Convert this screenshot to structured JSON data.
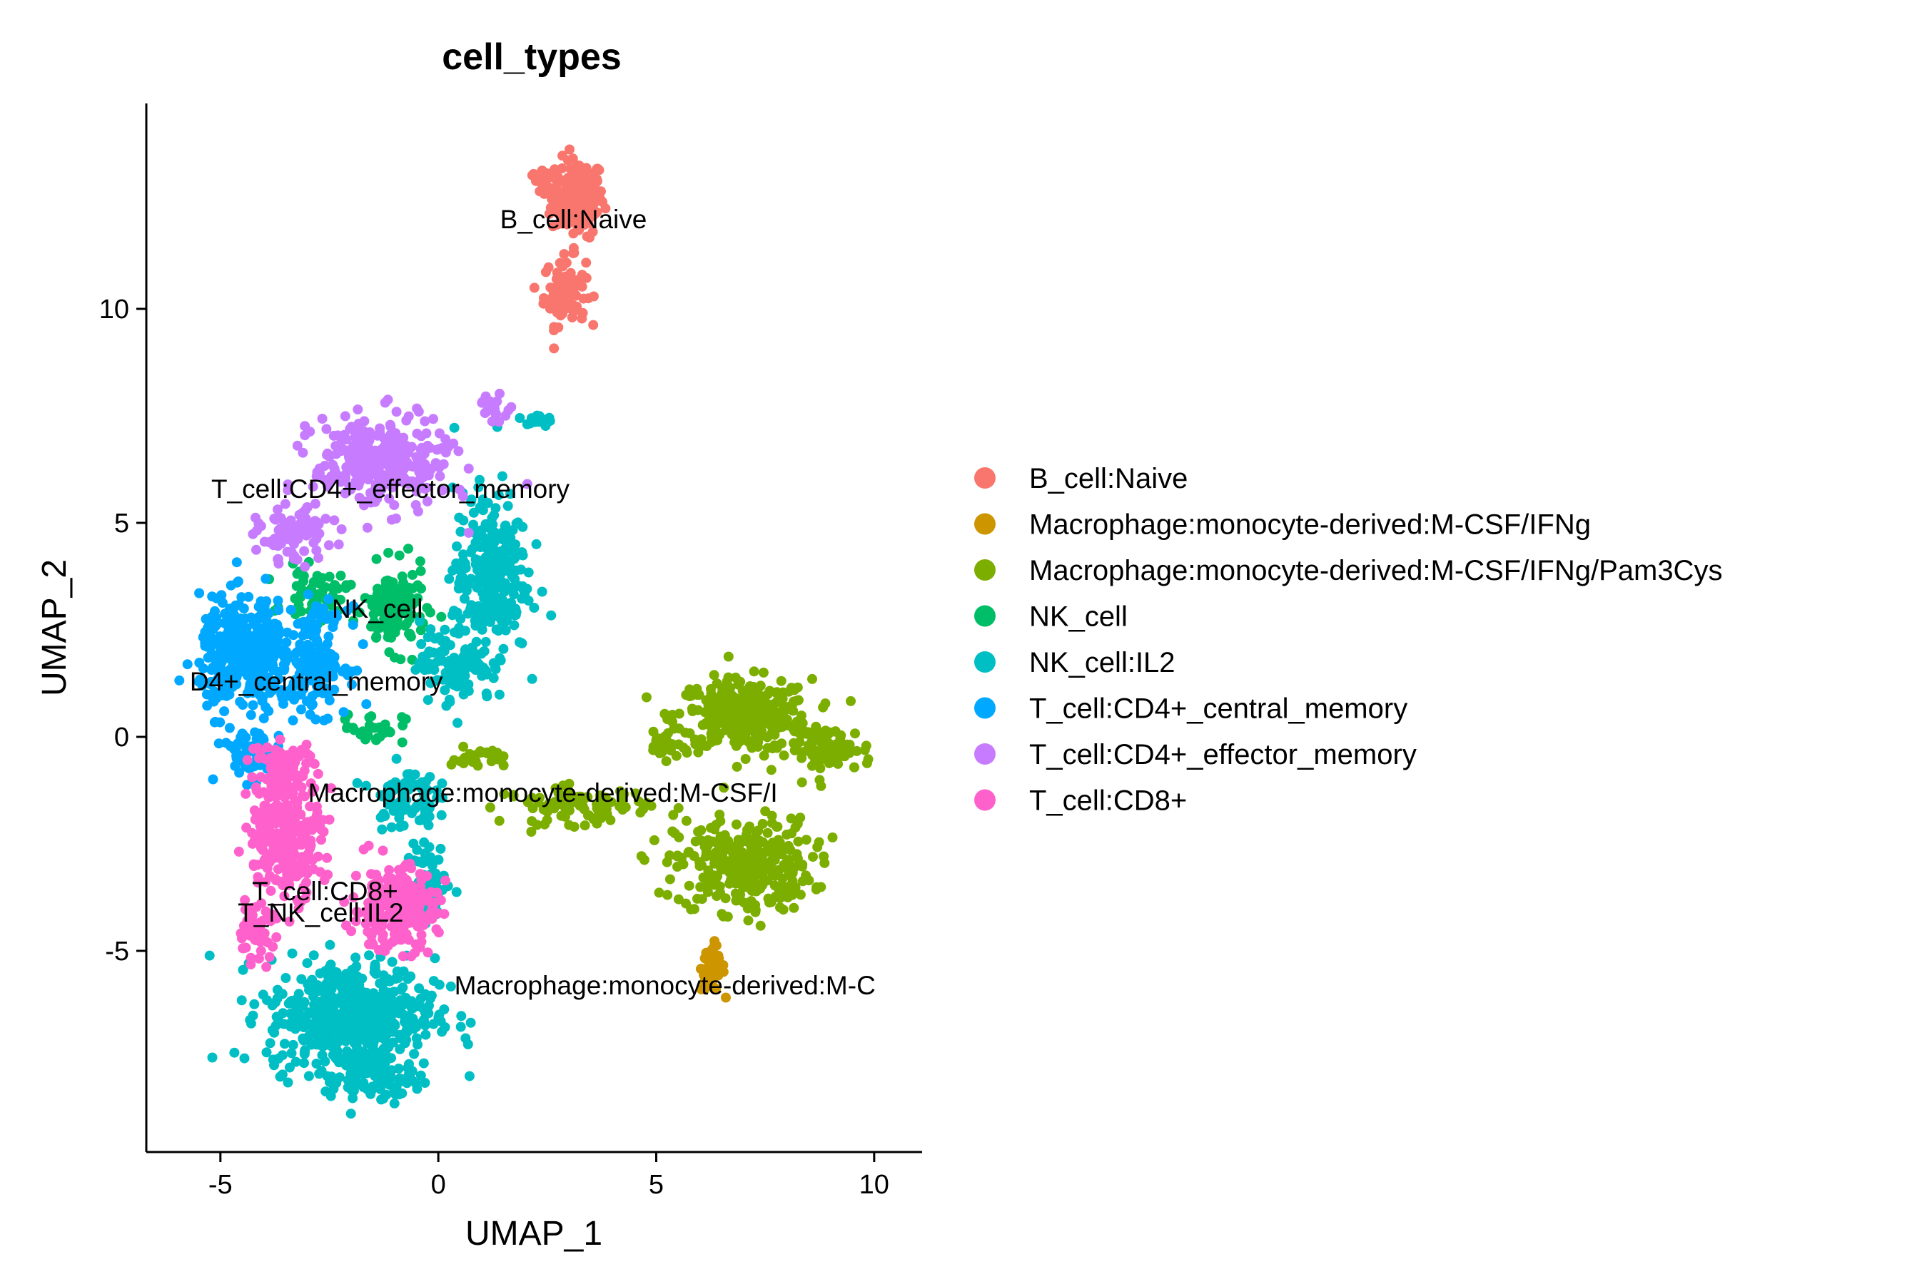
{
  "chart_data": {
    "type": "scatter",
    "title": "cell_types",
    "xlabel": "UMAP_1",
    "ylabel": "UMAP_2",
    "xlim": [
      -6.7,
      11.1
    ],
    "ylim": [
      -9.7,
      14.8
    ],
    "x_ticks": [
      -5,
      0,
      5,
      10
    ],
    "y_ticks": [
      -5,
      0,
      5,
      10
    ],
    "x_tick_labels": [
      "-5",
      "0",
      "5",
      "10"
    ],
    "y_tick_labels": [
      "-5",
      "0",
      "5",
      "10"
    ],
    "grid": false,
    "legend_position": "right",
    "series": [
      {
        "name": "B_cell:Naive",
        "color": "#F8766D",
        "clusters": [
          [
            3.2,
            12.6,
            0.5,
            0.75,
            180
          ],
          [
            2.9,
            10.4,
            0.4,
            0.65,
            90
          ],
          [
            2.5,
            13.0,
            0.3,
            0.2,
            30
          ]
        ]
      },
      {
        "name": "Macrophage:monocyte-derived:M-CSF/IFNg",
        "color": "#CD9600",
        "clusters": [
          [
            6.3,
            -5.4,
            0.22,
            0.45,
            60
          ]
        ]
      },
      {
        "name": "Macrophage:monocyte-derived:M-CSF/IFNg/Pam3Cys",
        "color": "#7CAE00",
        "clusters": [
          [
            7.0,
            0.5,
            1.3,
            0.7,
            320
          ],
          [
            7.0,
            -3.0,
            1.3,
            0.9,
            320
          ],
          [
            9.0,
            -0.3,
            0.8,
            0.45,
            80
          ],
          [
            3.2,
            -1.6,
            1.4,
            0.35,
            90
          ],
          [
            0.9,
            -0.5,
            0.5,
            0.2,
            30
          ],
          [
            5.2,
            -0.2,
            0.3,
            0.25,
            25
          ]
        ]
      },
      {
        "name": "NK_cell",
        "color": "#00BE67",
        "clusters": [
          [
            -1.0,
            3.0,
            0.6,
            0.8,
            140
          ],
          [
            -2.8,
            3.3,
            0.6,
            0.5,
            60
          ],
          [
            -1.5,
            0.2,
            0.6,
            0.3,
            30
          ]
        ]
      },
      {
        "name": "NK_cell:IL2",
        "color": "#00BFC4",
        "clusters": [
          [
            -2.0,
            -6.5,
            1.6,
            1.1,
            520
          ],
          [
            -1.5,
            -7.9,
            0.8,
            0.5,
            110
          ],
          [
            1.2,
            3.8,
            0.7,
            1.6,
            260
          ],
          [
            0.4,
            1.8,
            0.7,
            0.8,
            110
          ],
          [
            -0.2,
            -3.5,
            0.4,
            0.8,
            70
          ],
          [
            -0.8,
            -1.4,
            0.6,
            0.6,
            80
          ],
          [
            2.3,
            7.4,
            0.3,
            0.15,
            20
          ]
        ]
      },
      {
        "name": "T_cell:CD4+_central_memory",
        "color": "#00A9FF",
        "clusters": [
          [
            -4.4,
            1.9,
            0.9,
            1.1,
            360
          ],
          [
            -2.8,
            1.8,
            0.6,
            1.0,
            160
          ],
          [
            -4.3,
            -0.4,
            0.6,
            0.5,
            60
          ]
        ]
      },
      {
        "name": "T_cell:CD4+_effector_memory",
        "color": "#C77CFF",
        "clusters": [
          [
            -1.3,
            6.4,
            1.3,
            0.9,
            300
          ],
          [
            -3.3,
            4.7,
            0.7,
            0.5,
            90
          ],
          [
            1.3,
            7.7,
            0.3,
            0.25,
            20
          ]
        ]
      },
      {
        "name": "T_cell:CD8+",
        "color": "#FF61CC",
        "clusters": [
          [
            -3.5,
            -2.2,
            0.7,
            1.2,
            300
          ],
          [
            -1.0,
            -4.0,
            0.8,
            0.8,
            240
          ],
          [
            -4.2,
            -4.6,
            0.4,
            0.5,
            50
          ],
          [
            -3.6,
            -0.6,
            0.6,
            0.4,
            60
          ]
        ]
      }
    ],
    "annotations": [
      {
        "text": "B_cell:Naive",
        "x": 3.1,
        "y": 12.1
      },
      {
        "text": "T_cell:CD4+_effector_memory",
        "x": -1.1,
        "y": 5.8
      },
      {
        "text": "NK_cell",
        "x": -1.4,
        "y": 3.0
      },
      {
        "text": "D4+_central_memory",
        "x": -2.8,
        "y": 1.3
      },
      {
        "text": "Macrophage:monocyte-derived:M-CSF/I",
        "x": 2.4,
        "y": -1.3
      },
      {
        "text": "T_cell:CD8+",
        "x": -2.6,
        "y": -3.6
      },
      {
        "text": "T_NK_cell:IL2",
        "x": -2.7,
        "y": -4.1
      },
      {
        "text": "Macrophage:monocyte-derived:M-C",
        "x": 5.2,
        "y": -5.8
      }
    ]
  }
}
